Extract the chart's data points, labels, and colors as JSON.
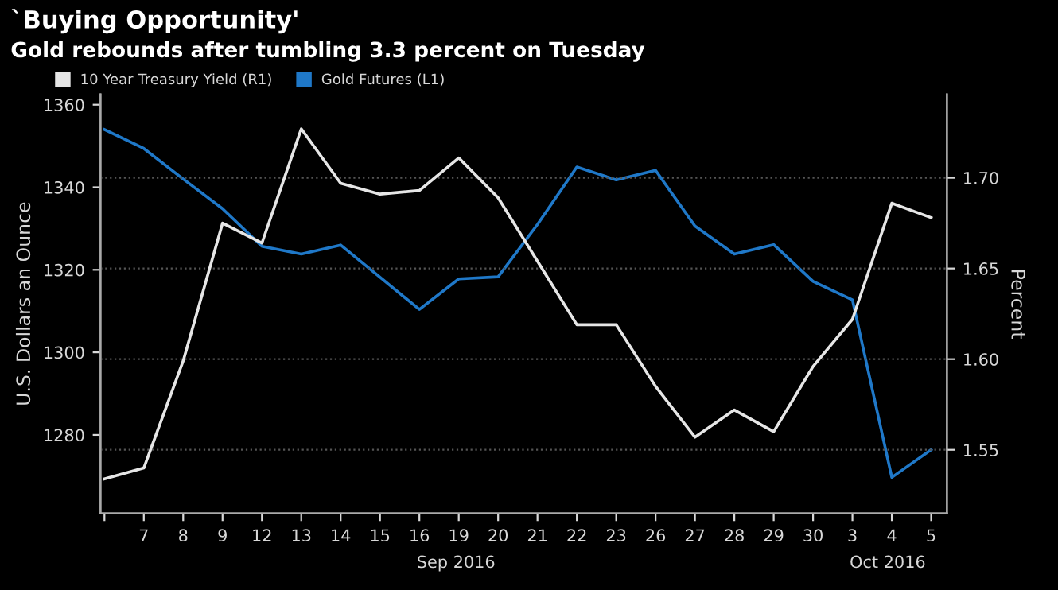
{
  "chart_data": {
    "type": "line",
    "title": "`Buying Opportunity'",
    "subtitle": "Gold rebounds after tumbling 3.3 percent on Tuesday",
    "ylabel": "U.S. Dollars an Ounce",
    "y2label": "Percent",
    "categories": [
      null,
      "7",
      "8",
      "9",
      "12",
      "13",
      "14",
      "15",
      "16",
      "19",
      "20",
      "21",
      "22",
      "23",
      "26",
      "27",
      "28",
      "29",
      "30",
      "3",
      "4",
      "5"
    ],
    "series": [
      {
        "name": "10 Year Treasury Yield (R1)",
        "color": "#e6e6e6",
        "axis": "y2",
        "values": [
          1.534,
          1.54,
          1.599,
          1.675,
          1.664,
          1.727,
          1.697,
          1.691,
          1.693,
          1.711,
          1.689,
          1.654,
          1.619,
          1.619,
          1.585,
          1.557,
          1.572,
          1.56,
          1.596,
          1.622,
          1.686,
          1.678
        ]
      },
      {
        "name": "Gold Futures (L1)",
        "color": "#1f78c8",
        "values": [
          1354,
          1349.4,
          1342,
          1334.8,
          1325.7,
          1323.8,
          1326,
          1318.2,
          1310.4,
          1317.8,
          1318.3,
          1331,
          1344.9,
          1341.8,
          1344.1,
          1330.6,
          1323.8,
          1326.1,
          1317.2,
          1312.7,
          1269.7,
          1276.4
        ]
      }
    ],
    "ylim": [
      1261,
      1362.5
    ],
    "yticks": [
      1280,
      1300,
      1320,
      1340,
      1360
    ],
    "y2lim": [
      1.515,
      1.746
    ],
    "y2ticks": [
      {
        "value": 1.55,
        "label": "1.55"
      },
      {
        "value": 1.6,
        "label": "1.60"
      },
      {
        "value": 1.65,
        "label": "1.65"
      },
      {
        "value": 1.7,
        "label": "1.70"
      }
    ],
    "annotations": [
      "Sep 2016",
      "Oct 2016"
    ],
    "grid": "y2",
    "legend": "top left",
    "line_style": "solid",
    "marker": "none"
  }
}
